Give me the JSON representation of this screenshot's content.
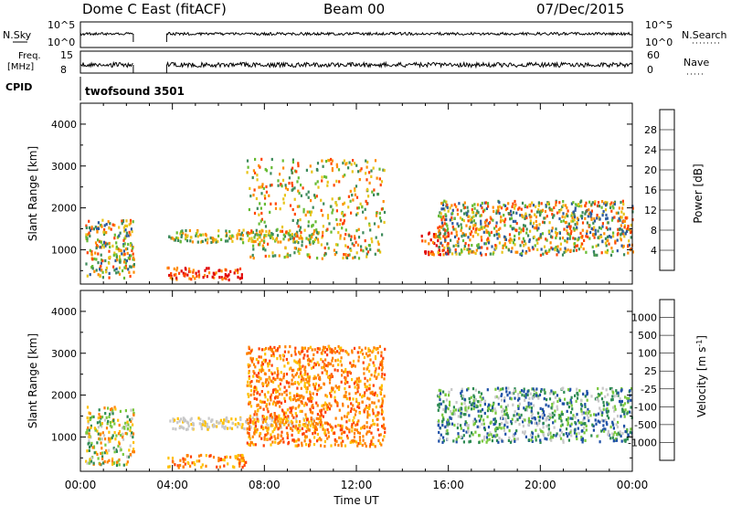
{
  "header": {
    "station": "Dome C East (fitACF)",
    "beam": "Beam 00",
    "date": "07/Dec/2015"
  },
  "strips": {
    "nsky_label": "N.Sky",
    "nsky_ticks": [
      "10^5",
      "10^0"
    ],
    "nsearch_label": "N.Search",
    "nsearch_ticks": [
      "10^5",
      "10^0"
    ],
    "freq_label_1": "Freq.",
    "freq_label_2": "[MHz]",
    "freq_ticks": [
      "15",
      "8"
    ],
    "nave_label": "Nave",
    "nave_ticks": [
      "60",
      "0"
    ],
    "cpid_label": "CPID",
    "cpid_text": "twofsound 3501"
  },
  "colors": {
    "power": [
      "#0000ff",
      "#2d5a9e",
      "#3c8a5a",
      "#66bb33",
      "#e8c419",
      "#ff8c00",
      "#ff4500",
      "#e00000"
    ],
    "velocity": [
      "#0000ff",
      "#1d4fa6",
      "#2c8a52",
      "#78c83c",
      "#c8c8c8",
      "#ffc000",
      "#ff8000",
      "#ff4000",
      "#e00000"
    ]
  },
  "chart_data": [
    {
      "type": "heatmap",
      "parameter": "power",
      "title": "",
      "xlabel": "Time UT",
      "ylabel": "Slant Range [km]",
      "xlim_hours": [
        0,
        24
      ],
      "ylim_km": [
        180,
        4500
      ],
      "x_ticks": [
        "00:00",
        "04:00",
        "08:00",
        "12:00",
        "16:00",
        "20:00",
        "00:00"
      ],
      "y_ticks": [
        1000,
        2000,
        3000,
        4000
      ],
      "colorbar_label": "Power [dB]",
      "colorbar_ticks": [
        "28",
        "24",
        "20",
        "16",
        "12",
        "8",
        "4"
      ],
      "data_gaps_hours": [
        [
          2.3,
          3.75
        ]
      ],
      "echo_regions": [
        {
          "t0": 0.2,
          "t1": 2.3,
          "r0": 350,
          "r1": 1750,
          "level": "mixed"
        },
        {
          "t0": 3.75,
          "t1": 7.2,
          "r0": 300,
          "r1": 600,
          "level": "high"
        },
        {
          "t0": 3.8,
          "t1": 10.5,
          "r0": 1200,
          "r1": 1500,
          "level": "mid"
        },
        {
          "t0": 7.2,
          "t1": 13.2,
          "r0": 800,
          "r1": 3200,
          "level": "patchy"
        },
        {
          "t0": 14.8,
          "t1": 16.0,
          "r0": 900,
          "r1": 1500,
          "level": "high"
        },
        {
          "t0": 15.5,
          "t1": 24.0,
          "r0": 900,
          "r1": 2200,
          "level": "mixed"
        }
      ]
    },
    {
      "type": "heatmap",
      "parameter": "velocity",
      "title": "",
      "xlabel": "Time UT",
      "ylabel": "Slant Range [km]",
      "xlim_hours": [
        0,
        24
      ],
      "ylim_km": [
        180,
        4500
      ],
      "x_ticks": [
        "00:00",
        "04:00",
        "08:00",
        "12:00",
        "16:00",
        "20:00",
        "00:00"
      ],
      "y_ticks": [
        1000,
        2000,
        3000,
        4000
      ],
      "colorbar_label": "Velocity [m s",
      "colorbar_label_sup": "-1",
      "colorbar_ticks": [
        "1000",
        "500",
        "100",
        "25",
        "-25",
        "-100",
        "-500",
        "-1000"
      ],
      "data_gaps_hours": [
        [
          2.3,
          3.75
        ]
      ],
      "echo_regions": [
        {
          "t0": 0.2,
          "t1": 2.3,
          "r0": 350,
          "r1": 1750,
          "level": "mixed"
        },
        {
          "t0": 3.75,
          "t1": 7.2,
          "r0": 300,
          "r1": 600,
          "level": "negative"
        },
        {
          "t0": 3.8,
          "t1": 10.5,
          "r0": 1200,
          "r1": 1500,
          "level": "near-zero"
        },
        {
          "t0": 7.2,
          "t1": 13.2,
          "r0": 800,
          "r1": 3200,
          "level": "negative"
        },
        {
          "t0": 15.5,
          "t1": 24.0,
          "r0": 900,
          "r1": 2200,
          "level": "positive"
        }
      ]
    }
  ]
}
